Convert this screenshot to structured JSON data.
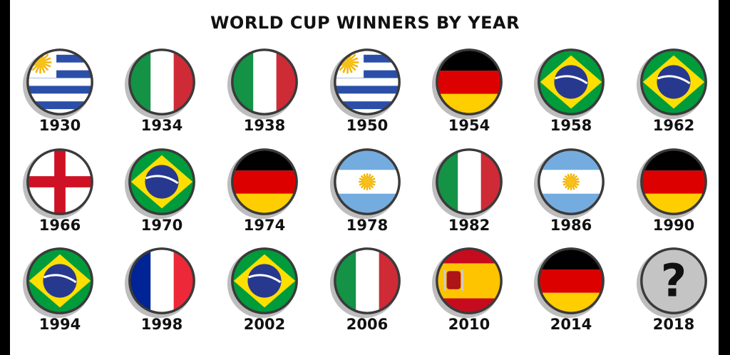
{
  "title": "WORLD CUP WINNERS BY YEAR",
  "winners": [
    {
      "year": "1930",
      "flag": "uruguay-flag"
    },
    {
      "year": "1934",
      "flag": "italy-flag"
    },
    {
      "year": "1938",
      "flag": "italy-flag"
    },
    {
      "year": "1950",
      "flag": "uruguay-flag"
    },
    {
      "year": "1954",
      "flag": "germany-flag"
    },
    {
      "year": "1958",
      "flag": "brazil-flag"
    },
    {
      "year": "1962",
      "flag": "brazil-flag"
    },
    {
      "year": "1966",
      "flag": "england-flag"
    },
    {
      "year": "1970",
      "flag": "brazil-flag"
    },
    {
      "year": "1974",
      "flag": "germany-flag"
    },
    {
      "year": "1978",
      "flag": "argentina-flag"
    },
    {
      "year": "1982",
      "flag": "italy-flag"
    },
    {
      "year": "1986",
      "flag": "argentina-flag"
    },
    {
      "year": "1990",
      "flag": "germany-flag"
    },
    {
      "year": "1994",
      "flag": "brazil-flag"
    },
    {
      "year": "1998",
      "flag": "france-flag"
    },
    {
      "year": "2002",
      "flag": "brazil-flag"
    },
    {
      "year": "2006",
      "flag": "italy-flag"
    },
    {
      "year": "2010",
      "flag": "spain-flag"
    },
    {
      "year": "2014",
      "flag": "germany-flag"
    },
    {
      "year": "2018",
      "flag": "question-mark-icon",
      "text": "?"
    }
  ],
  "colors": {
    "outline": "#3a3a3a",
    "shadow": "#bdbdbd"
  }
}
